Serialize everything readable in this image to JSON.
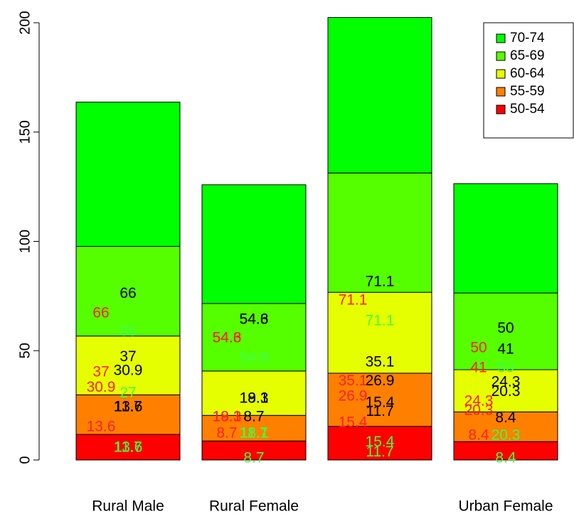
{
  "chart_data": {
    "type": "stacked-bar",
    "categories": [
      "Rural Male",
      "Rural Female",
      null,
      "Urban Female"
    ],
    "series": [
      {
        "name": "50-54",
        "color": "#FF0000",
        "values": [
          11.7,
          8.7,
          15.4,
          8.4
        ]
      },
      {
        "name": "55-59",
        "color": "#FF8000",
        "values": [
          18.1,
          11.7,
          24.3,
          13.6
        ]
      },
      {
        "name": "60-64",
        "color": "#E6FF00",
        "values": [
          26.9,
          20.3,
          37.0,
          19.3
        ]
      },
      {
        "name": "65-69",
        "color": "#55FF00",
        "values": [
          41.0,
          30.9,
          54.6,
          35.1
        ]
      },
      {
        "name": "70-74",
        "color": "#00FF00",
        "values": [
          66.0,
          54.3,
          71.1,
          50.0
        ]
      }
    ],
    "ylim": [
      0,
      200
    ],
    "yticks": [
      0,
      50,
      100,
      150,
      200
    ],
    "legend": "top-right",
    "annotations": [
      {
        "text": "66",
        "x": 0,
        "y": 76,
        "color": "black"
      },
      {
        "text": "66",
        "x": 0,
        "y": 67,
        "color": "red"
      },
      {
        "text": "66",
        "x": 0,
        "y": 58.5,
        "color": "green"
      },
      {
        "text": "37",
        "x": 0,
        "y": 47,
        "color": "black"
      },
      {
        "text": "37",
        "x": 0,
        "y": 40,
        "color": "red"
      },
      {
        "text": "30.9",
        "x": 0,
        "y": 40.6,
        "color": "black"
      },
      {
        "text": "30.9",
        "x": 0,
        "y": 33,
        "color": "red"
      },
      {
        "text": "27",
        "x": 0,
        "y": 30.5,
        "color": "green"
      },
      {
        "text": "13.6",
        "x": 0,
        "y": 24,
        "color": "black"
      },
      {
        "text": "11.7",
        "x": 0,
        "y": 24,
        "color": "black"
      },
      {
        "text": "13.6",
        "x": 0,
        "y": 15,
        "color": "red"
      },
      {
        "text": "13.6",
        "x": 0,
        "y": 5.5,
        "color": "green"
      },
      {
        "text": "11.7",
        "x": 0,
        "y": 5.5,
        "color": "green"
      },
      {
        "text": "54.3",
        "x": 1,
        "y": 64,
        "color": "black"
      },
      {
        "text": "54.6",
        "x": 1,
        "y": 64,
        "color": "black"
      },
      {
        "text": "54.3",
        "x": 1,
        "y": 55.6,
        "color": "red"
      },
      {
        "text": "54.6",
        "x": 1,
        "y": 55.6,
        "color": "red"
      },
      {
        "text": "54.3",
        "x": 1,
        "y": 46.5,
        "color": "green"
      },
      {
        "text": "54.6",
        "x": 1,
        "y": 46.5,
        "color": "green"
      },
      {
        "text": "19.3",
        "x": 1,
        "y": 28,
        "color": "black"
      },
      {
        "text": "18.1",
        "x": 1,
        "y": 28,
        "color": "black"
      },
      {
        "text": "18.1",
        "x": 1,
        "y": 19.5,
        "color": "red"
      },
      {
        "text": "19.3",
        "x": 1,
        "y": 19.5,
        "color": "red"
      },
      {
        "text": "8.7",
        "x": 1,
        "y": 19.5,
        "color": "black"
      },
      {
        "text": "8.7",
        "x": 1,
        "y": 12,
        "color": "red"
      },
      {
        "text": "11.7",
        "x": 1,
        "y": 12,
        "color": "green"
      },
      {
        "text": "18.1",
        "x": 1,
        "y": 12,
        "color": "green"
      },
      {
        "text": "8.7",
        "x": 1,
        "y": 0.7,
        "color": "green"
      },
      {
        "text": "71.1",
        "x": 2,
        "y": 81.3,
        "color": "black"
      },
      {
        "text": "71.1",
        "x": 2,
        "y": 72.8,
        "color": "red"
      },
      {
        "text": "71.1",
        "x": 2,
        "y": 63.4,
        "color": "green"
      },
      {
        "text": "35.1",
        "x": 2,
        "y": 44.5,
        "color": "black"
      },
      {
        "text": "26.9",
        "x": 2,
        "y": 36,
        "color": "black"
      },
      {
        "text": "35.1",
        "x": 2,
        "y": 36,
        "color": "red"
      },
      {
        "text": "26.9",
        "x": 2,
        "y": 29,
        "color": "red"
      },
      {
        "text": "15.4",
        "x": 2,
        "y": 26,
        "color": "black"
      },
      {
        "text": "11.7",
        "x": 2,
        "y": 22,
        "color": "black"
      },
      {
        "text": "15.4",
        "x": 2,
        "y": 17,
        "color": "red"
      },
      {
        "text": "15.4",
        "x": 2,
        "y": 8,
        "color": "green"
      },
      {
        "text": "11.7",
        "x": 2,
        "y": 3.5,
        "color": "green"
      },
      {
        "text": "50",
        "x": 3,
        "y": 60,
        "color": "black"
      },
      {
        "text": "50",
        "x": 3,
        "y": 51,
        "color": "red"
      },
      {
        "text": "41",
        "x": 3,
        "y": 50.4,
        "color": "black"
      },
      {
        "text": "41",
        "x": 3,
        "y": 42,
        "color": "red"
      },
      {
        "text": "50",
        "x": 3,
        "y": 42,
        "color": "green"
      },
      {
        "text": "24.3",
        "x": 3,
        "y": 35.4,
        "color": "black"
      },
      {
        "text": "20.3",
        "x": 3,
        "y": 31,
        "color": "black"
      },
      {
        "text": "24.3",
        "x": 3,
        "y": 26.7,
        "color": "red"
      },
      {
        "text": "20.3",
        "x": 3,
        "y": 22.4,
        "color": "red"
      },
      {
        "text": "8.4",
        "x": 3,
        "y": 19,
        "color": "black"
      },
      {
        "text": "8.4",
        "x": 3,
        "y": 11,
        "color": "red"
      },
      {
        "text": "20.3",
        "x": 3,
        "y": 11,
        "color": "green"
      },
      {
        "text": "8.4",
        "x": 3,
        "y": 0.7,
        "color": "green"
      }
    ]
  }
}
